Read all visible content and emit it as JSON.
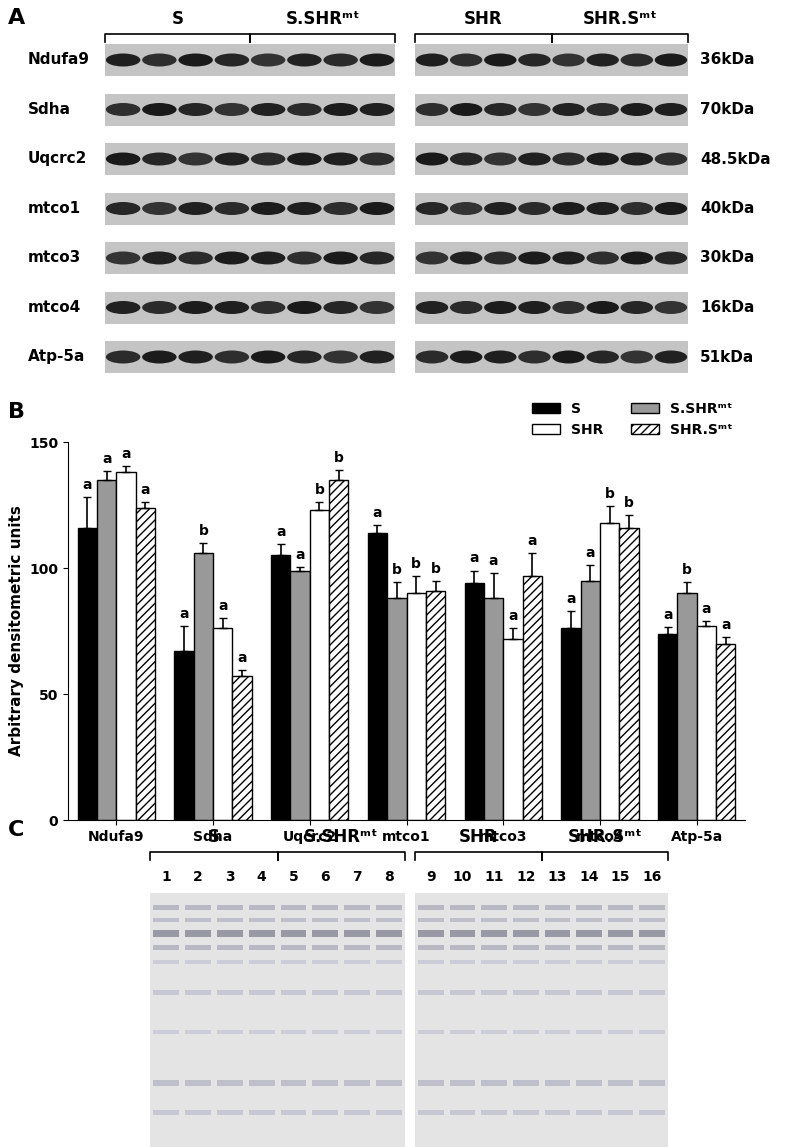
{
  "chart_data": {
    "type": "bar",
    "panel_label": "B",
    "y_label": "Arbitrary densitometric units",
    "categories": [
      "Ndufa9",
      "Sdha",
      "Uqcrc2",
      "mtco1",
      "mtco3",
      "mtco4",
      "Atp-5a"
    ],
    "series": [
      {
        "name": "S",
        "color": "#000000",
        "values": [
          116,
          67,
          105,
          114,
          94,
          76,
          74
        ],
        "errors": [
          12,
          10,
          4.5,
          3,
          5,
          7,
          2.5
        ],
        "letters": [
          "a",
          "a",
          "a",
          "a",
          "a",
          "a",
          "a"
        ]
      },
      {
        "name": "S.SHRᵐᵗ",
        "color": "#999999",
        "values": [
          135,
          106,
          99,
          88,
          88,
          95,
          90
        ],
        "errors": [
          3.5,
          4,
          1.5,
          6.5,
          10,
          6,
          4.5
        ],
        "letters": [
          "a",
          "b",
          "a",
          "b",
          "a",
          "a",
          "b"
        ]
      },
      {
        "name": "SHR",
        "color": "#ffffff",
        "values": [
          138,
          76,
          123,
          90,
          72,
          118,
          77
        ],
        "errors": [
          2.5,
          4,
          3,
          7,
          4,
          6.5,
          2
        ],
        "letters": [
          "a",
          "a",
          "b",
          "b",
          "a",
          "b",
          "a"
        ]
      },
      {
        "name": "SHR.Sᵐᵗ",
        "color": "#ffffff",
        "values": [
          124,
          57,
          135,
          91,
          97,
          116,
          70
        ],
        "errors": [
          2,
          2.5,
          4,
          4,
          9,
          5,
          2.5
        ],
        "letters": [
          "a",
          "a",
          "b",
          "b",
          "a",
          "b",
          "a"
        ]
      }
    ],
    "ylim": [
      0,
      150
    ],
    "yticks": [
      0,
      50,
      100,
      150
    ],
    "legend": "upper right",
    "grid": false
  },
  "blot_panel": {
    "panel_label": "A",
    "groups": [
      "S",
      "S.SHRᵐᵗ",
      "SHR",
      "SHR.Sᵐᵗ"
    ],
    "proteins": [
      {
        "name": "Ndufa9",
        "size": "36kDa"
      },
      {
        "name": "Sdha",
        "size": "70kDa"
      },
      {
        "name": "Uqcrc2",
        "size": "48.5kDa"
      },
      {
        "name": "mtco1",
        "size": "40kDa"
      },
      {
        "name": "mtco3",
        "size": "30kDa"
      },
      {
        "name": "mtco4",
        "size": "16kDa"
      },
      {
        "name": "Atp-5a",
        "size": "51kDa"
      }
    ]
  },
  "stain_panel": {
    "panel_label": "C",
    "groups": [
      "S",
      "S.SHRᵐᵗ",
      "SHR",
      "SHR.Sᵐᵗ"
    ],
    "lanes": [
      1,
      2,
      3,
      4,
      5,
      6,
      7,
      8,
      9,
      10,
      11,
      12,
      13,
      14,
      15,
      16
    ]
  }
}
